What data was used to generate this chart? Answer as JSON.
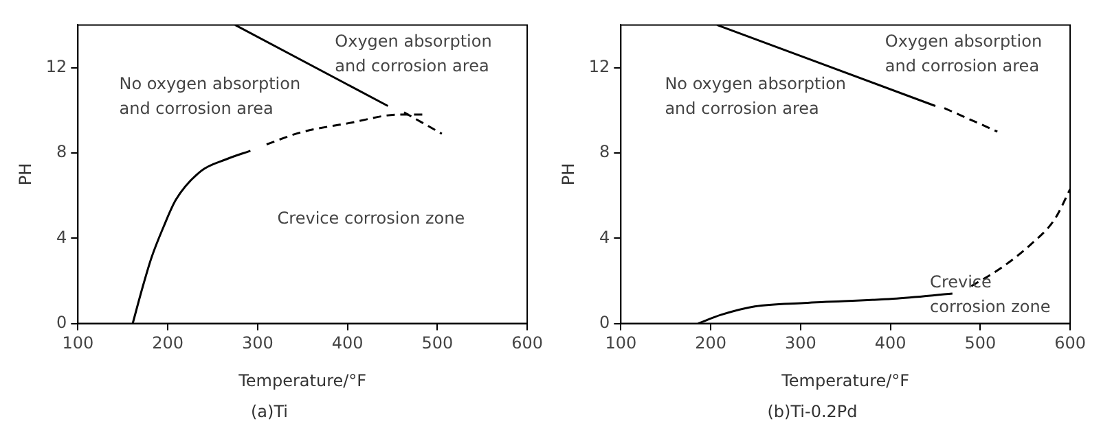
{
  "chart_data": [
    {
      "type": "line",
      "title": "(a)Ti",
      "xlabel": "Temperature/°F",
      "ylabel": "PH",
      "xlim": [
        100,
        600
      ],
      "xticks": [
        100,
        200,
        300,
        400,
        500,
        600
      ],
      "ylim": [
        0,
        14
      ],
      "yticks": [
        0,
        4,
        8,
        12
      ],
      "grid": false,
      "legend": false,
      "marker": "none",
      "annotations": [
        "Oxygen absorption\nand corrosion area",
        "No oxygen absorption\nand corrosion area",
        "Crevice corrosion zone"
      ],
      "series": [
        {
          "color": "#000000",
          "line_style": "solid",
          "x": [
            275,
            445
          ],
          "values": [
            14,
            10.2
          ]
        },
        {
          "color": "#000000",
          "line_style": "dashed",
          "x": [
            463,
            505
          ],
          "values": [
            9.9,
            8.9
          ]
        },
        {
          "color": "#000000",
          "line_style": "solid",
          "x": [
            161,
            172,
            182,
            195,
            209,
            237,
            265,
            292
          ],
          "values": [
            0,
            1.7,
            3.1,
            4.5,
            5.8,
            7.15,
            7.7,
            8.1
          ]
        },
        {
          "color": "#000000",
          "line_style": "dashed",
          "x": [
            310,
            347,
            402,
            458,
            485
          ],
          "values": [
            8.4,
            8.95,
            9.4,
            9.8,
            9.8
          ]
        }
      ]
    },
    {
      "type": "line",
      "title": "(b)Ti-0.2Pd",
      "xlabel": "Temperature/°F",
      "ylabel": "PH",
      "xlim": [
        100,
        600
      ],
      "xticks": [
        100,
        200,
        300,
        400,
        500,
        600
      ],
      "ylim": [
        0,
        14
      ],
      "yticks": [
        0,
        4,
        8,
        12
      ],
      "grid": false,
      "legend": false,
      "marker": "none",
      "annotations": [
        "Oxygen absorption\nand corrosion area",
        "No oxygen absorption\nand corrosion area",
        "Crevice\ncorrosion zone"
      ],
      "series": [
        {
          "color": "#000000",
          "line_style": "solid",
          "x": [
            207,
            450
          ],
          "values": [
            14,
            10.2
          ]
        },
        {
          "color": "#000000",
          "line_style": "dashed",
          "x": [
            460,
            519
          ],
          "values": [
            10.1,
            9.0
          ]
        },
        {
          "color": "#000000",
          "line_style": "solid",
          "x": [
            186,
            211,
            249,
            304,
            403,
            469
          ],
          "values": [
            0,
            0.4,
            0.8,
            0.96,
            1.16,
            1.4
          ]
        },
        {
          "color": "#000000",
          "line_style": "dashed",
          "x": [
            490,
            523,
            556,
            583,
            600
          ],
          "values": [
            1.75,
            2.6,
            3.7,
            4.9,
            6.3
          ]
        }
      ]
    }
  ]
}
